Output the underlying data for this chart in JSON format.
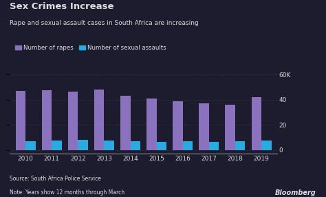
{
  "title": "Sex Crimes Increase",
  "subtitle": "Rape and sexual assault cases in South Africa are increasing",
  "years": [
    2010,
    2011,
    2012,
    2013,
    2014,
    2015,
    2016,
    2017,
    2018,
    2019
  ],
  "rapes": [
    47000,
    47500,
    46500,
    48000,
    43000,
    41000,
    39000,
    37000,
    36000,
    42000
  ],
  "assaults": [
    7000,
    7500,
    8000,
    7500,
    7000,
    6500,
    6800,
    6500,
    7000,
    7500
  ],
  "rape_color": "#8B72BE",
  "assault_color": "#29ABE2",
  "background_color": "#1C1C2E",
  "text_color": "#DDDDDD",
  "grid_color": "#444466",
  "ylabel_right": [
    "0",
    "20",
    "40",
    "60K"
  ],
  "yticks": [
    0,
    20000,
    40000,
    60000
  ],
  "source": "Source: South Africa Police Service",
  "note": "Note: Years show 12 months through March",
  "bloomberg": "Bloomberg"
}
